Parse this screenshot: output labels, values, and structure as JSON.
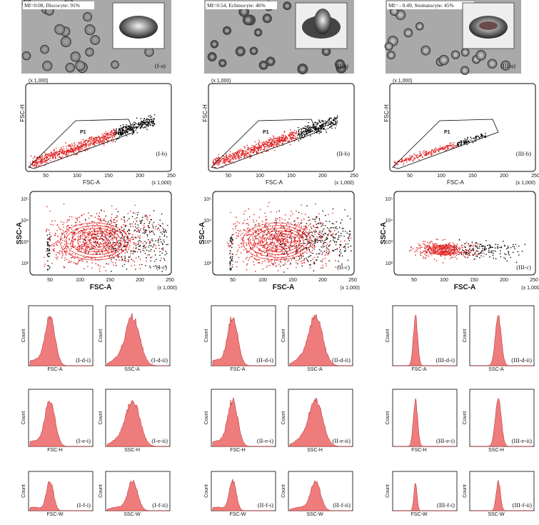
{
  "columns": [
    {
      "image_caption": "MI=0.08, Discocyte: 91%",
      "image_label": "(I-a)",
      "scatter": {
        "label": "(I-b)",
        "y_label": "FSC-H",
        "x_label": "FSC-A",
        "gate": "P1",
        "unit": "(x 1,000)"
      },
      "contour": {
        "label": "(I-c)",
        "y_label": "SSC-A",
        "x_label": "FSC-A",
        "unit": "(x 1,000)"
      },
      "histograms": [
        {
          "label": "(I-d-i)",
          "y_label": "Count",
          "x_label": "FSC-A"
        },
        {
          "label": "(I-d-ii)",
          "y_label": "Count",
          "x_label": "SSC-A"
        },
        {
          "label": "(I-e-i)",
          "y_label": "Count",
          "x_label": "FSC-H"
        },
        {
          "label": "(I-e-ii)",
          "y_label": "Count",
          "x_label": "SSC-H"
        },
        {
          "label": "(I-f-i)",
          "y_label": "Count",
          "x_label": "FSC-W"
        },
        {
          "label": "(I-f-ii)",
          "y_label": "Count",
          "x_label": "SSC-W"
        }
      ]
    },
    {
      "image_caption": "MI=0.54, Echinocyte: 46%",
      "image_label": "(II-a)",
      "scatter": {
        "label": "(II-b)",
        "y_label": "FSC-H",
        "x_label": "FSC-A",
        "gate": "P1",
        "unit": "(x 1,000)"
      },
      "contour": {
        "label": "(II-c)",
        "y_label": "SSC-A",
        "x_label": "FSC-A",
        "unit": "(x 1,000)"
      },
      "histograms": [
        {
          "label": "(II-d-i)",
          "y_label": "Count",
          "x_label": "FSC-A"
        },
        {
          "label": "(II-d-ii)",
          "y_label": "Count",
          "x_label": "SSC-A"
        },
        {
          "label": "(II-e-i)",
          "y_label": "Count",
          "x_label": "FSC-H"
        },
        {
          "label": "(II-e-ii)",
          "y_label": "Count",
          "x_label": "SSC-H"
        },
        {
          "label": "(II-f-i)",
          "y_label": "Count",
          "x_label": "FSC-W"
        },
        {
          "label": "(II-f-ii)",
          "y_label": "Count",
          "x_label": "SSC-W"
        }
      ]
    },
    {
      "image_caption": "MI= - 0.49, Stomatocyte: 45%",
      "image_label": "(III-a)",
      "scatter": {
        "label": "(III-b)",
        "y_label": "FSC-H",
        "x_label": "FSC-A",
        "gate": "P1",
        "unit": "(x 1,000)"
      },
      "contour": {
        "label": "(III-c)",
        "y_label": "SSC-A",
        "x_label": "FSC-A",
        "unit": "(x 1,000)"
      },
      "histograms": [
        {
          "label": "(III-d-i)",
          "y_label": "Count",
          "x_label": "FSC-A"
        },
        {
          "label": "(III-d-ii)",
          "y_label": "Count",
          "x_label": "SSC-A"
        },
        {
          "label": "(III-e-i)",
          "y_label": "Count",
          "x_label": "FSC-H"
        },
        {
          "label": "(III-e-ii)",
          "y_label": "Count",
          "x_label": "SSC-H"
        },
        {
          "label": "(III-f-i)",
          "y_label": "Count",
          "x_label": "FSC-W"
        },
        {
          "label": "(III-f-ii)",
          "y_label": "Count",
          "x_label": "SSC-W"
        }
      ]
    }
  ],
  "x_tick_labels": [
    "50",
    "100",
    "150",
    "200",
    "250"
  ],
  "contour_y_tick_labels": [
    "10²",
    "10³",
    "10⁴",
    "10⁵"
  ]
}
